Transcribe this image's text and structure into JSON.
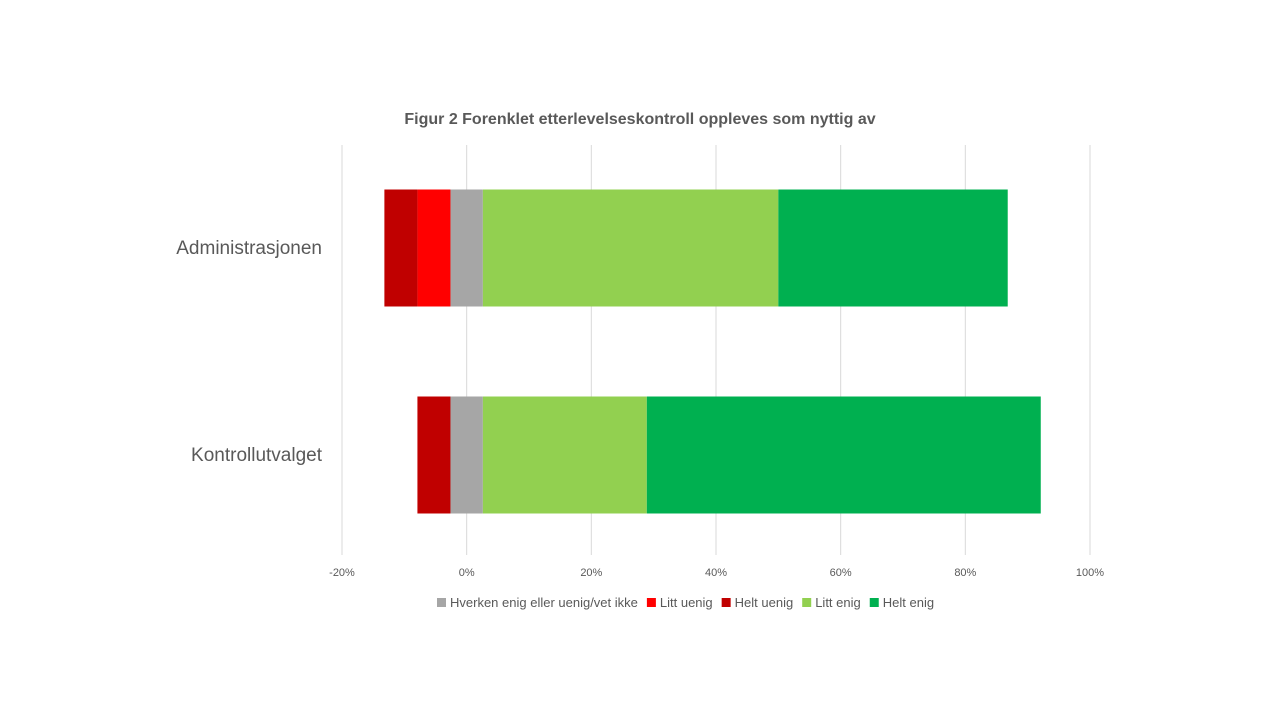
{
  "chart_data": {
    "type": "bar",
    "orientation": "horizontal",
    "stacked": "diverging",
    "title": "Figur 2 Forenklet etterlevelseskontroll oppleves som nyttig av",
    "xlabel": "",
    "ylabel": "",
    "categories": [
      "Administrasjonen",
      "Kontrollutvalget"
    ],
    "xlim": [
      -0.2,
      1.0
    ],
    "xticks": [
      -0.2,
      0,
      0.2,
      0.4,
      0.6,
      0.8,
      1.0
    ],
    "xtick_labels": [
      "-20%",
      "0%",
      "20%",
      "40%",
      "60%",
      "80%",
      "100%"
    ],
    "grid": "vertical",
    "legend_position": "bottom",
    "series": [
      {
        "name": "Hverken enig eller uenig/vet ikke",
        "color": "#a6a6a6",
        "side": "center",
        "values": [
          0.052,
          0.052
        ]
      },
      {
        "name": "Litt uenig",
        "color": "#ff0000",
        "side": "negative",
        "values": [
          0.053,
          0.0
        ]
      },
      {
        "name": "Helt uenig",
        "color": "#c00000",
        "side": "negative",
        "values": [
          0.053,
          0.053
        ]
      },
      {
        "name": "Litt enig",
        "color": "#92d050",
        "side": "positive",
        "values": [
          0.474,
          0.263
        ]
      },
      {
        "name": "Helt enig",
        "color": "#00b050",
        "side": "positive",
        "values": [
          0.368,
          0.632
        ]
      }
    ]
  }
}
